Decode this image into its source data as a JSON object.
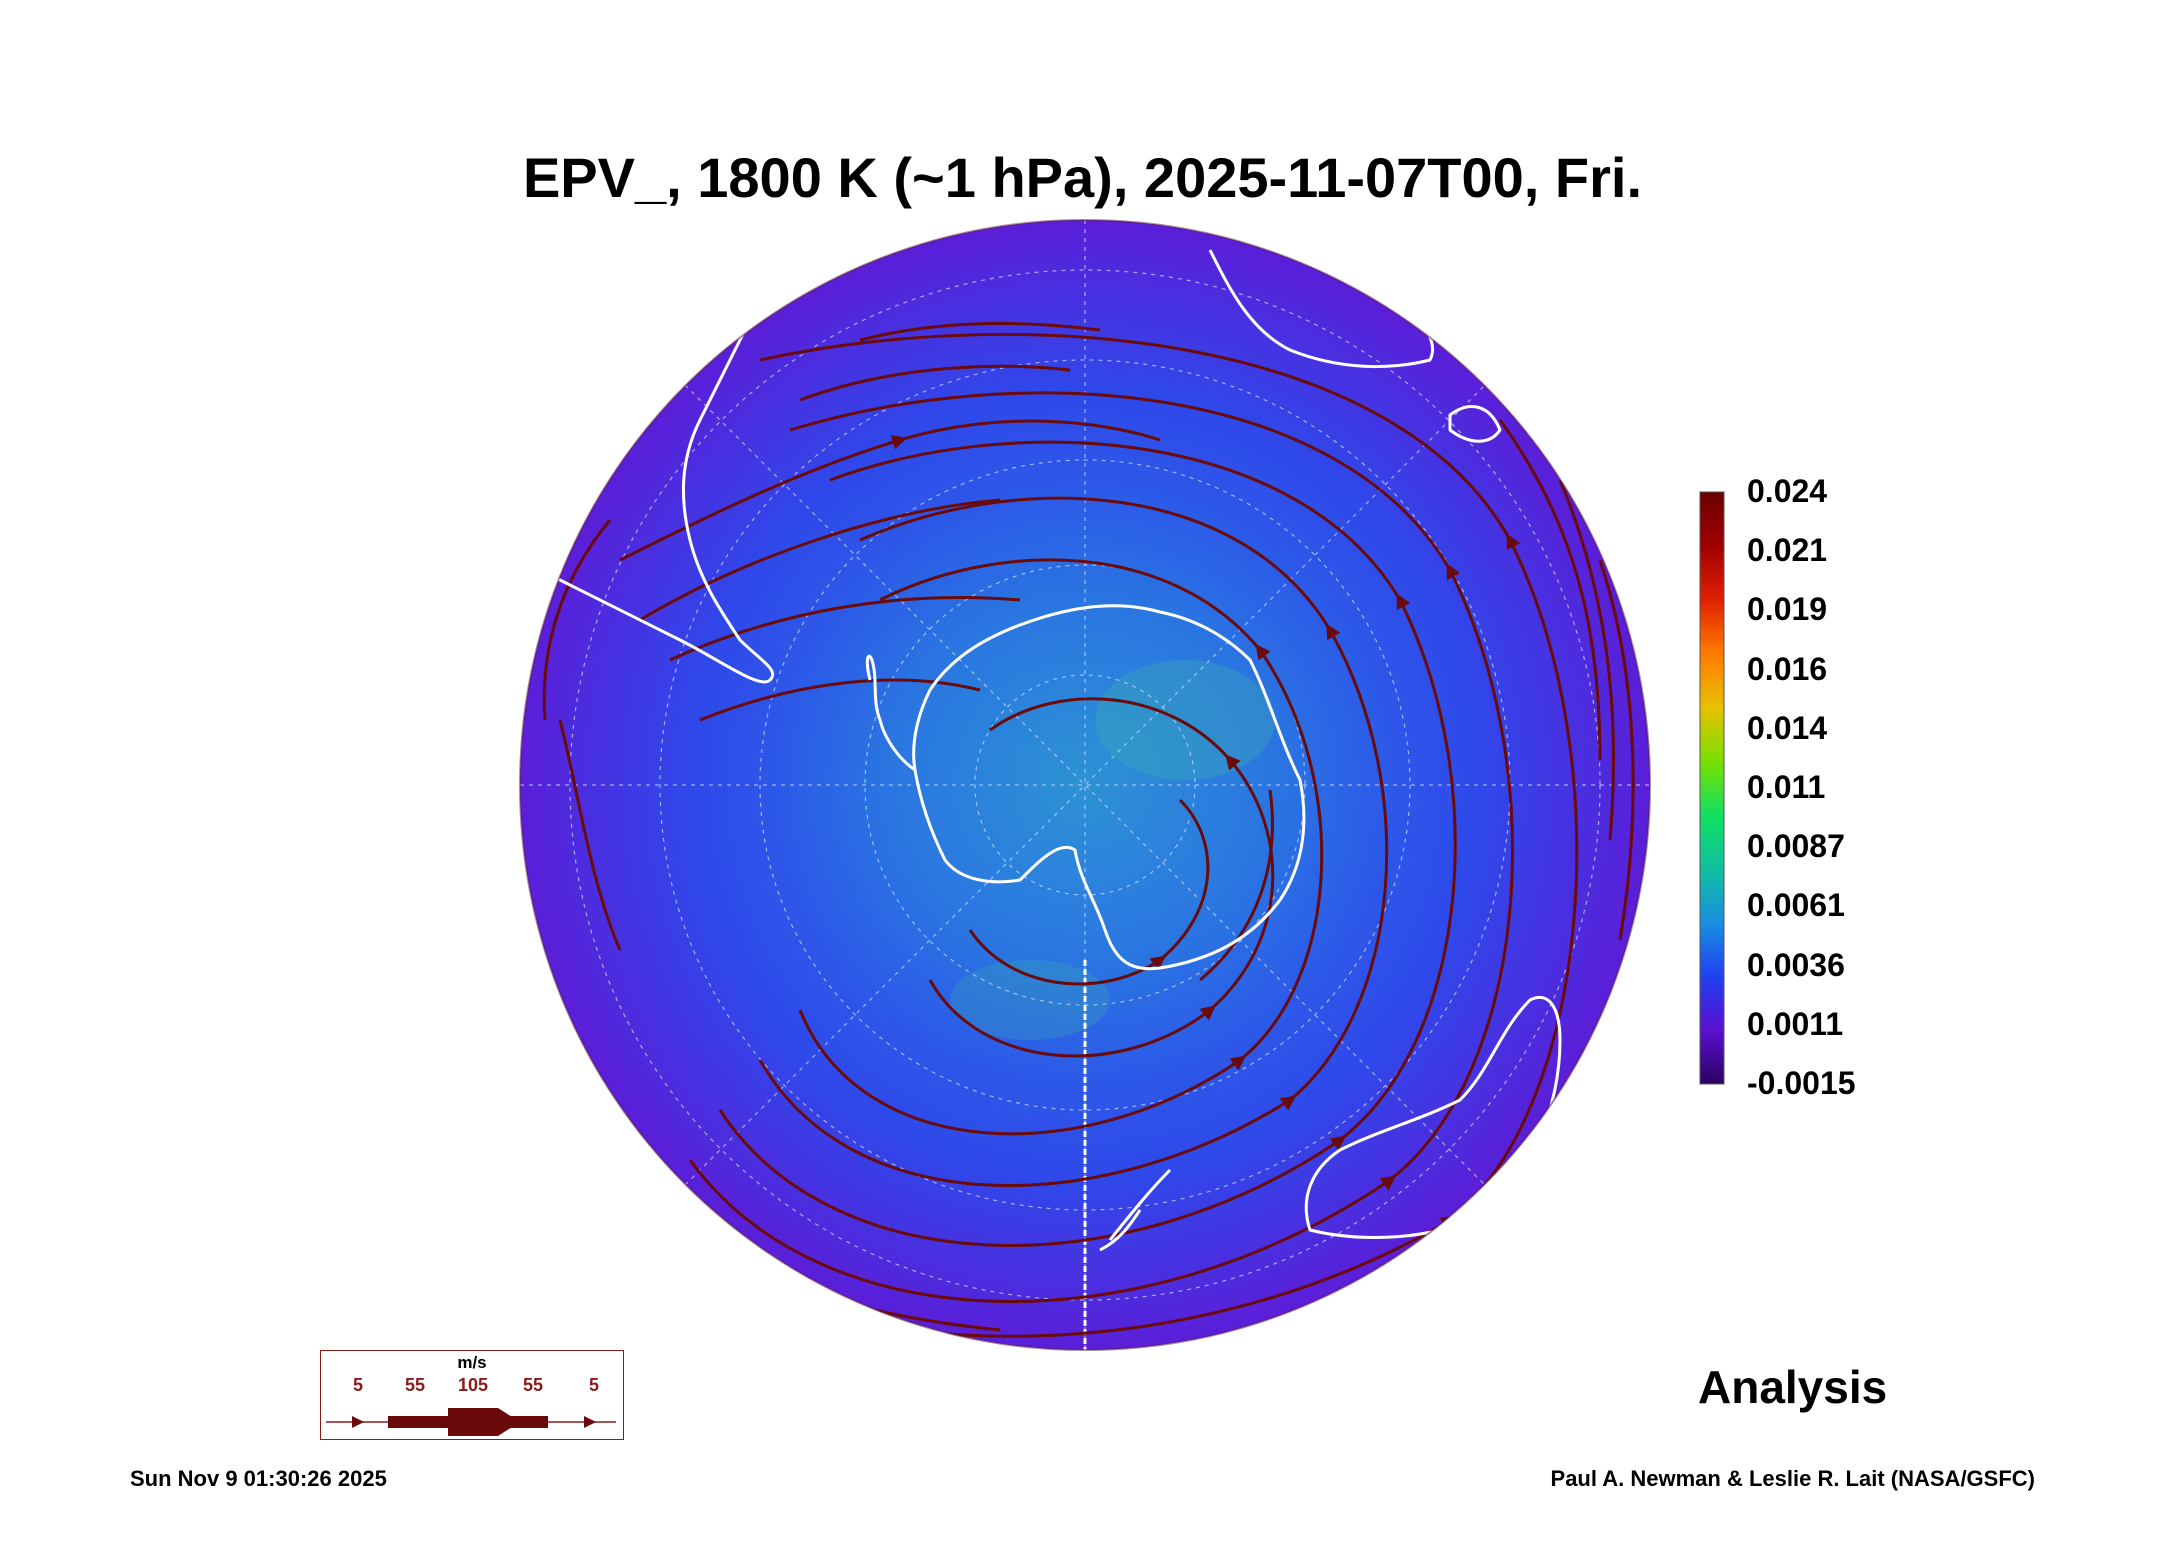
{
  "title": "EPV_, 1800 K (~1 hPa), 2025-11-07T00, Fri.",
  "colorbar": {
    "labels": [
      "0.024",
      "0.021",
      "0.019",
      "0.016",
      "0.014",
      "0.011",
      "0.0087",
      "0.0061",
      "0.0036",
      "0.0011",
      "-0.0015"
    ],
    "colors": [
      "#6b0000",
      "#a00000",
      "#e02000",
      "#ff7a00",
      "#e8c000",
      "#7ae000",
      "#10e060",
      "#10c0a0",
      "#1890e0",
      "#2040f0",
      "#5a10d0",
      "#2a0060"
    ]
  },
  "map": {
    "projection": "orthographic, south polar",
    "background_color": "#2a64e8",
    "coastline_color": "#ffffff",
    "streamline_color": "#6b0a0a",
    "regions": [
      "Antarctica",
      "South America",
      "Africa",
      "Australia",
      "New Zealand",
      "Madagascar"
    ]
  },
  "wind_legend": {
    "units": "m/s",
    "values": [
      "5",
      "55",
      "105",
      "55",
      "5"
    ]
  },
  "label": "Analysis",
  "timestamp": "Sun Nov  9 01:30:26 2025",
  "credit": "Paul A. Newman & Leslie R. Lait (NASA/GSFC)"
}
